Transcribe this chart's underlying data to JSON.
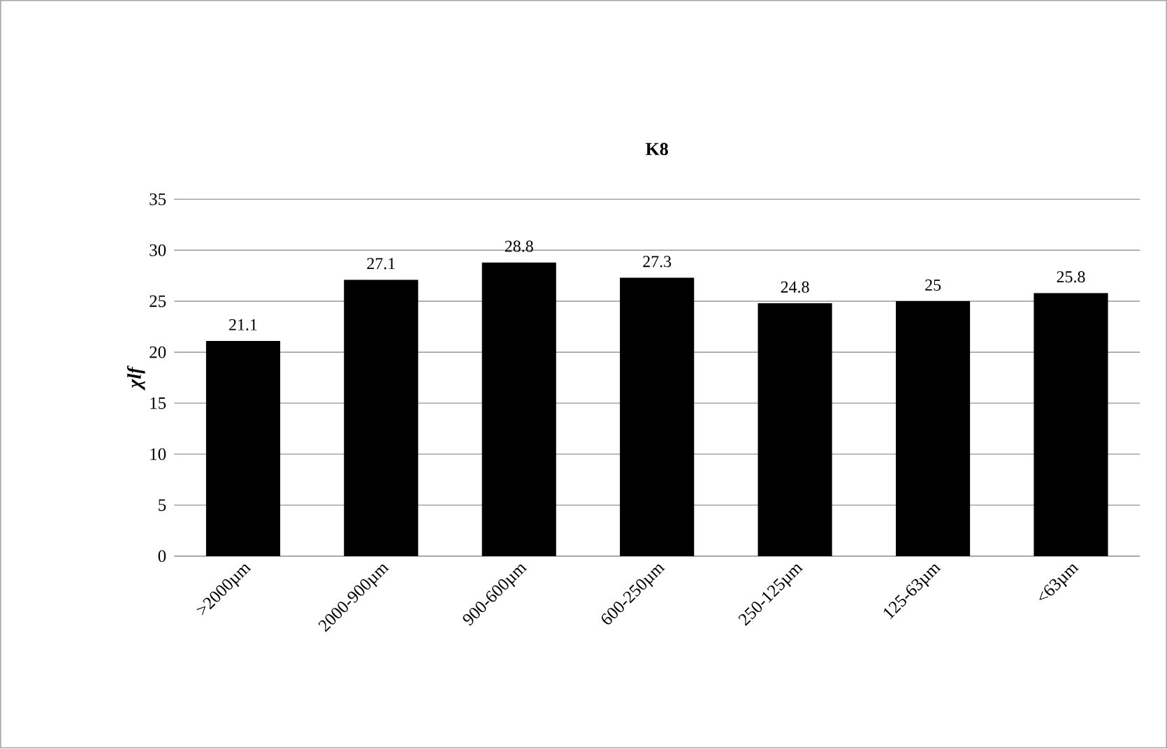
{
  "chart_data": {
    "type": "bar",
    "title": "K8",
    "ylabel": "χlf",
    "categories": [
      ">2000µm",
      "2000-900µm",
      "900-600µm",
      "600-250µm",
      "250-125µm",
      "125-63µm",
      "<63µm"
    ],
    "values": [
      21.1,
      27.1,
      28.8,
      27.3,
      24.8,
      25,
      25.8
    ],
    "color": "#000000",
    "ylim": [
      0,
      35
    ],
    "yticks": [
      0,
      5,
      10,
      15,
      20,
      25,
      30,
      35
    ],
    "grid": "y",
    "data_labels": true
  }
}
